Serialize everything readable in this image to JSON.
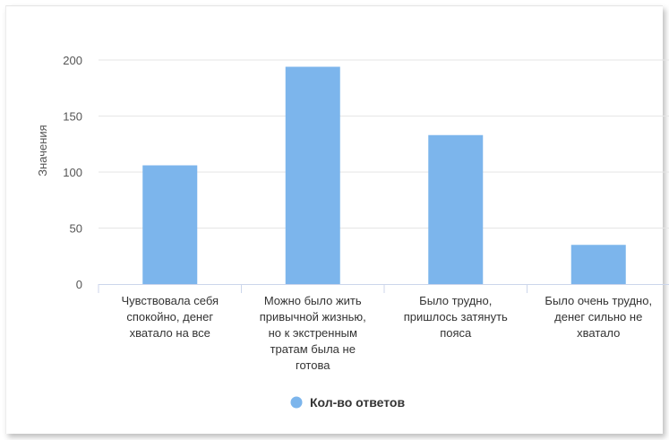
{
  "chart_data": {
    "type": "bar",
    "title": "",
    "xlabel": "",
    "ylabel": "Значения",
    "categories": [
      [
        "Чувствовала себя",
        "спокойно, денег",
        "хватало на все"
      ],
      [
        "Можно было жить",
        "привычной жизнью,",
        "но к экстренным",
        "тратам была не",
        "готова"
      ],
      [
        "Было трудно,",
        "пришлось затянуть",
        "пояса"
      ],
      [
        "Было очень трудно,",
        "денег сильно не",
        "хватало"
      ]
    ],
    "series": [
      {
        "name": "Кол-во ответов",
        "values": [
          106,
          194,
          133,
          35
        ],
        "color": "#7cb5ec"
      }
    ],
    "ylim": [
      0,
      200
    ],
    "yticks": [
      0,
      50,
      100,
      150,
      200
    ],
    "grid": true,
    "legend_position": "bottom-center"
  }
}
